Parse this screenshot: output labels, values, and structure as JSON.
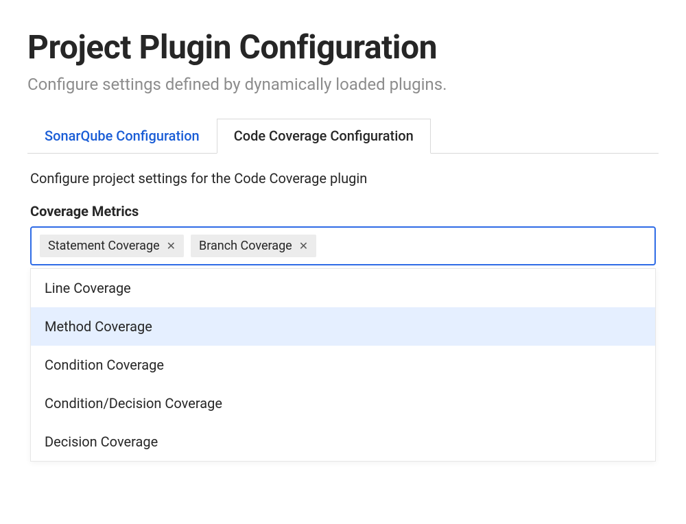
{
  "header": {
    "title": "Project Plugin Configuration",
    "subtitle": "Configure settings defined by dynamically loaded plugins."
  },
  "tabs": {
    "items": [
      {
        "label": "SonarQube Configuration",
        "active": false
      },
      {
        "label": "Code Coverage Configuration",
        "active": true
      }
    ]
  },
  "panel": {
    "description": "Configure project settings for the Code Coverage plugin",
    "field_label": "Coverage Metrics",
    "selected_tags": [
      {
        "label": "Statement Coverage"
      },
      {
        "label": "Branch Coverage"
      }
    ],
    "dropdown_options": [
      {
        "label": "Line Coverage",
        "highlighted": false
      },
      {
        "label": "Method Coverage",
        "highlighted": true
      },
      {
        "label": "Condition Coverage",
        "highlighted": false
      },
      {
        "label": "Condition/Decision Coverage",
        "highlighted": false
      },
      {
        "label": "Decision Coverage",
        "highlighted": false
      }
    ]
  },
  "colors": {
    "accent": "#2e6be6",
    "link": "#1a5dd6",
    "text": "#262626",
    "muted": "#8c8c8c",
    "tag_bg": "#ececec",
    "highlight_bg": "#e5efff",
    "border": "#d9d9d9"
  }
}
